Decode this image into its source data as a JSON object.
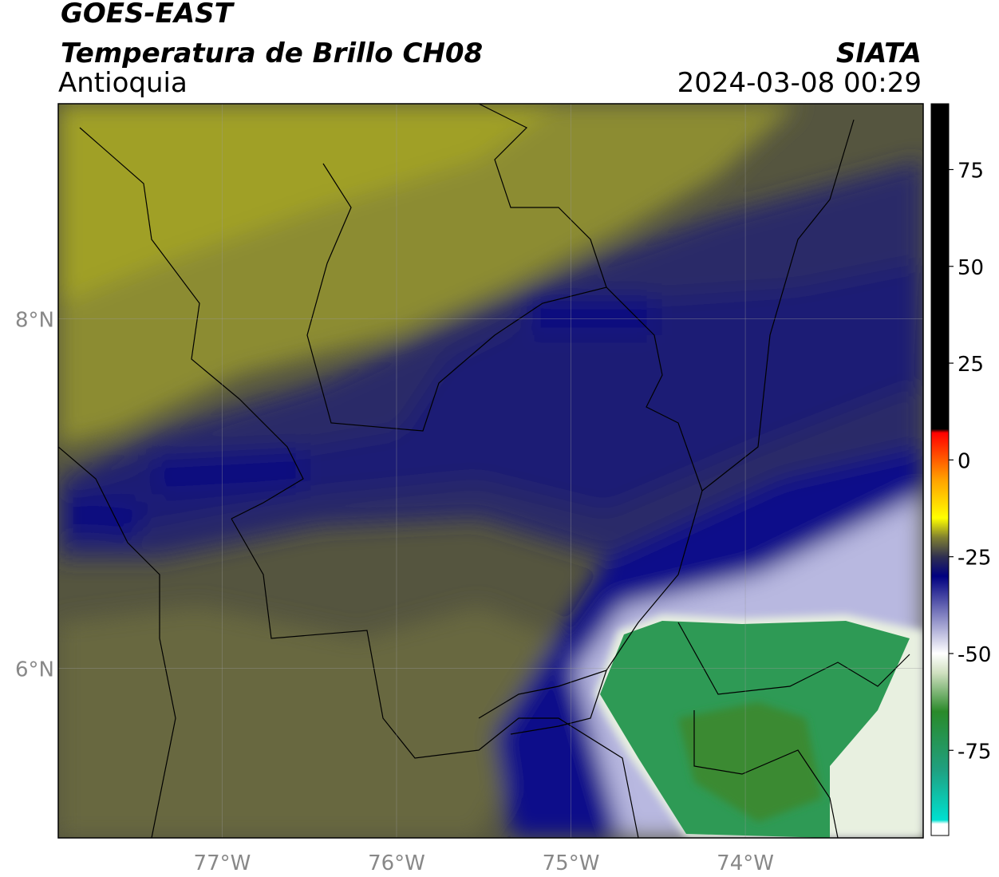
{
  "header": {
    "title": "GOES-EAST",
    "subtitle": "Temperatura de Brillo CH08",
    "region": "Antioquia",
    "source": "SIATA",
    "timestamp": "2024-03-08 00:29"
  },
  "map": {
    "xlim": [
      -77.94,
      -72.98
    ],
    "ylim": [
      5.03,
      9.23
    ],
    "xticks": [
      {
        "value": -77,
        "label": "77°W"
      },
      {
        "value": -76,
        "label": "76°W"
      },
      {
        "value": -75,
        "label": "75°W"
      },
      {
        "value": -74,
        "label": "74°W"
      }
    ],
    "yticks": [
      {
        "value": 8,
        "label": "8°N"
      },
      {
        "value": 6,
        "label": "6°N"
      }
    ],
    "grid": true
  },
  "colorbar": {
    "lim": [
      -97,
      92
    ],
    "ticks": [
      75,
      50,
      25,
      0,
      -25,
      -50,
      -75
    ],
    "stops": [
      {
        "value": -97,
        "color": "#ffffff"
      },
      {
        "value": -94,
        "color": "#ffffff"
      },
      {
        "value": -93,
        "color": "#00e0d0"
      },
      {
        "value": -80,
        "color": "#20a080"
      },
      {
        "value": -65,
        "color": "#2a8a2a"
      },
      {
        "value": -55,
        "color": "#d0e0c0"
      },
      {
        "value": -50,
        "color": "#ffffff"
      },
      {
        "value": -40,
        "color": "#8080c0"
      },
      {
        "value": -30,
        "color": "#000080"
      },
      {
        "value": -25,
        "color": "#303050"
      },
      {
        "value": -20,
        "color": "#808030"
      },
      {
        "value": -15,
        "color": "#ffff00"
      },
      {
        "value": -5,
        "color": "#ffa000"
      },
      {
        "value": 7,
        "color": "#ff0000"
      },
      {
        "value": 8,
        "color": "#000000"
      },
      {
        "value": 92,
        "color": "#000000"
      }
    ]
  }
}
